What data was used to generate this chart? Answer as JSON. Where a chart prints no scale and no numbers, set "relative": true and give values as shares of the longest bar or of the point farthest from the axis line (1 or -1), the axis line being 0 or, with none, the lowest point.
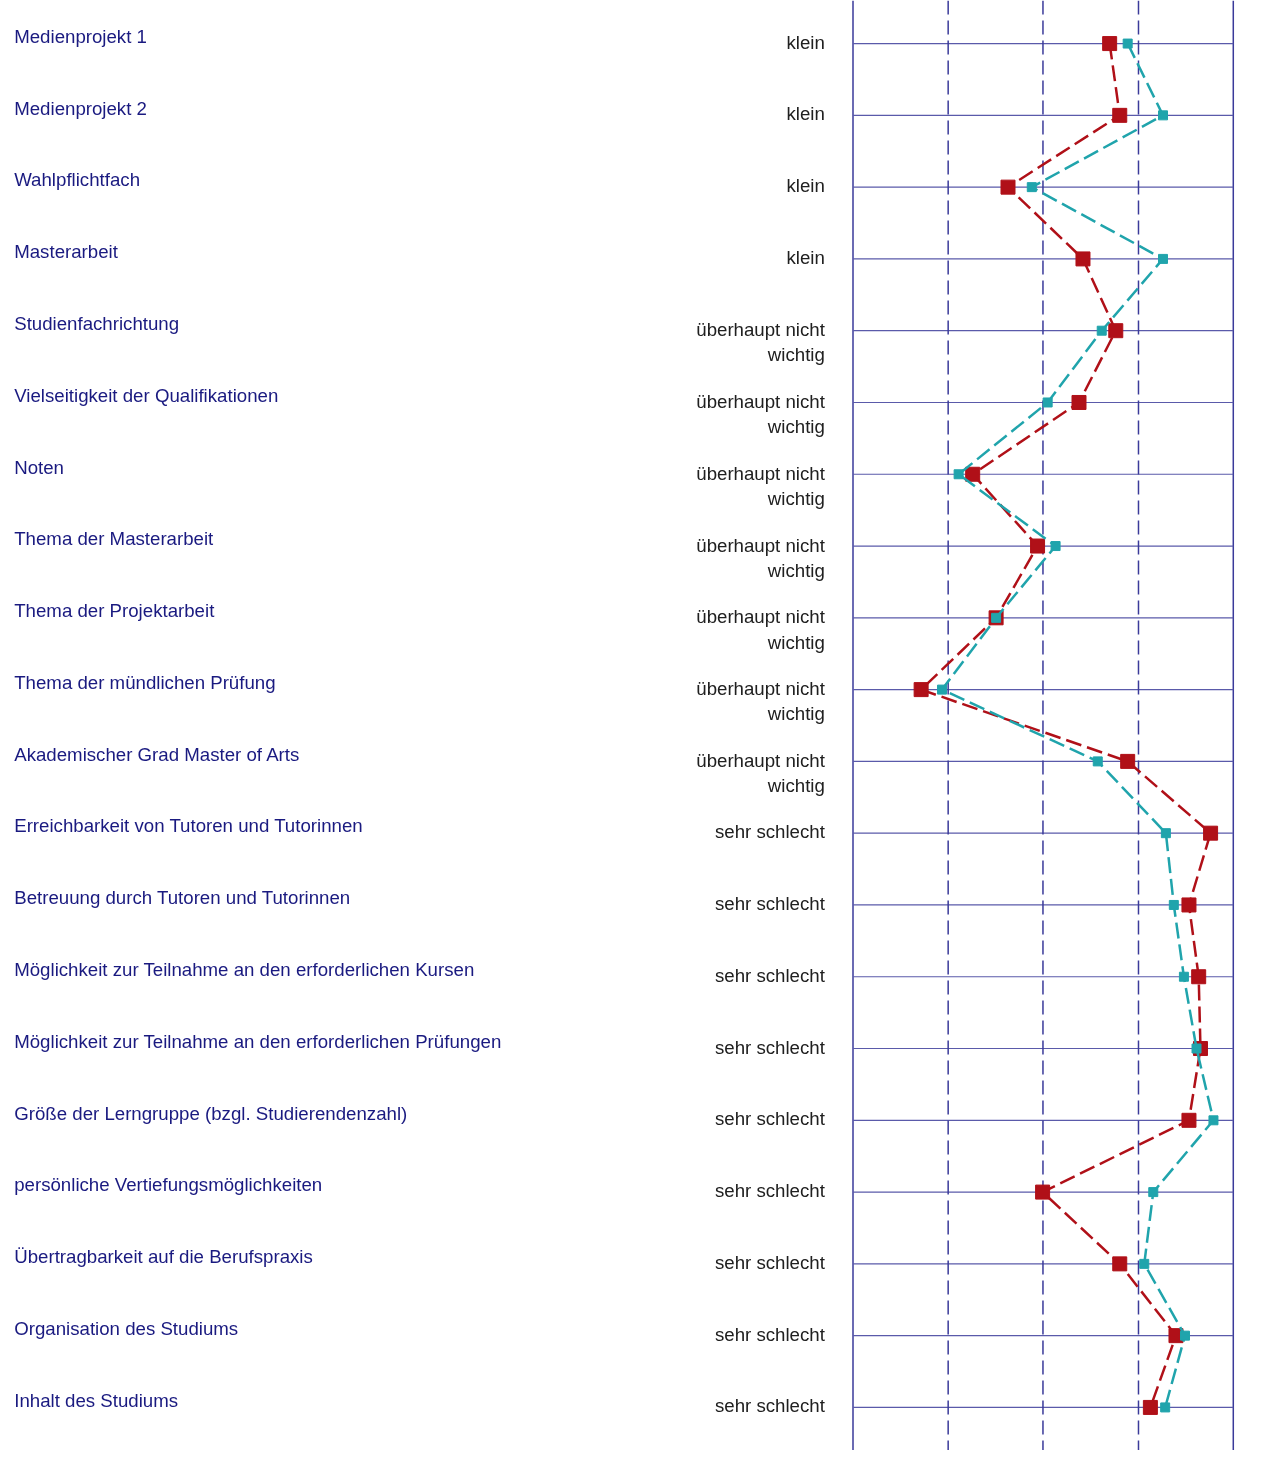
{
  "chart_data": {
    "type": "line",
    "orientation": "horizontal",
    "relative": true,
    "marker": "square",
    "line_style": "dashed",
    "grid": true,
    "categories": [
      "Medienprojekt 1",
      "Medienprojekt 2",
      "Wahlpflichtfach",
      "Masterarbeit",
      "Studienfachrichtung",
      "Vielseitigkeit der Qualifikationen",
      "Noten",
      "Thema der Masterarbeit",
      "Thema der Projektarbeit",
      "Thema der mündlichen Prüfung",
      "Akademischer Grad Master of Arts",
      "Erreichbarkeit von Tutoren und Tutorinnen",
      "Betreuung durch Tutoren und Tutorinnen",
      "Möglichkeit zur Teilnahme an den erforderlichen Kursen",
      "Möglichkeit zur Teilnahme an den erforderlichen Prüfungen",
      "Größe der Lerngruppe (bzgl.  Studierendenzahl)",
      "persönliche Vertiefungsmöglichkeiten",
      "Übertragbarkeit auf die Berufspraxis",
      "Organisation des Studiums",
      "Inhalt des Studiums"
    ],
    "series": [
      {
        "color": "#b01018",
        "values": [
          0.712,
          0.74,
          0.43,
          0.638,
          0.729,
          0.627,
          0.332,
          0.512,
          0.397,
          0.189,
          0.762,
          0.992,
          0.932,
          0.959,
          0.964,
          0.932,
          0.526,
          0.74,
          0.896,
          0.825
        ]
      },
      {
        "color": "#20a4ac",
        "values": [
          0.762,
          0.86,
          0.496,
          0.86,
          0.69,
          0.54,
          0.293,
          0.562,
          0.397,
          0.247,
          0.679,
          0.868,
          0.89,
          0.918,
          0.953,
          1,
          0.833,
          0.808,
          0.921,
          0.866
        ]
      }
    ],
    "ref_lines": [
      {
        "axis": "x",
        "value": 0.264,
        "line_style": "dashed",
        "color": "#3a3a9a"
      },
      {
        "axis": "x",
        "value": 0.527,
        "line_style": "dashed",
        "color": "#3a3a9a"
      },
      {
        "axis": "x",
        "value": 0.792,
        "line_style": "dashed",
        "color": "#3a3a9a"
      }
    ],
    "annotations": [
      "klein",
      "klein",
      "klein",
      "klein",
      "überhaupt nicht wichtig",
      "überhaupt nicht wichtig",
      "überhaupt nicht wichtig",
      "überhaupt nicht wichtig",
      "überhaupt nicht wichtig",
      "überhaupt nicht wichtig",
      "überhaupt nicht wichtig",
      "sehr schlecht",
      "sehr schlecht",
      "sehr schlecht",
      "sehr schlecht",
      "sehr schlecht",
      "sehr schlecht",
      "sehr schlecht",
      "sehr schlecht",
      "sehr schlecht"
    ]
  }
}
